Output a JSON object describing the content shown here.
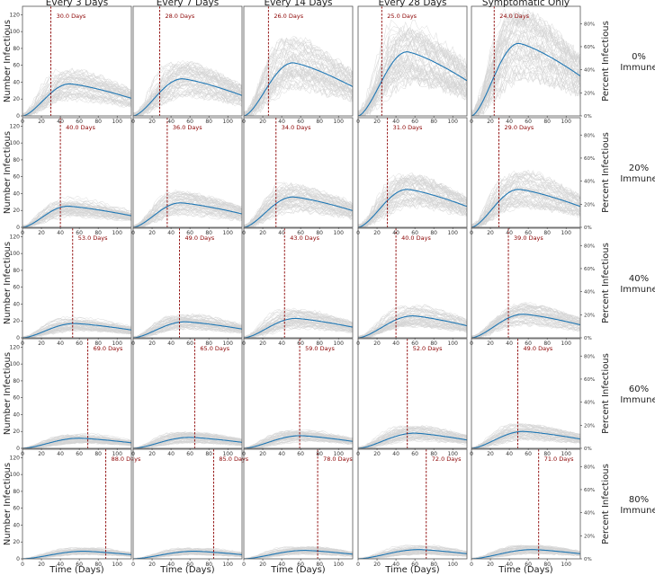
{
  "chart_data": {
    "type": "line",
    "column_titles": [
      "Every 3 Days",
      "Every 7 Days",
      "Every 14 Days",
      "Every 28 Days",
      "Symptomatic Only"
    ],
    "row_labels": [
      [
        "0%",
        "Immune"
      ],
      [
        "20%",
        "Immune"
      ],
      [
        "40%",
        "Immune"
      ],
      [
        "60%",
        "Immune"
      ],
      [
        "80%",
        "Immune"
      ]
    ],
    "xlabel": "Time (Days)",
    "ylabel_left": "Number Infectious",
    "ylabel_right": "Percent Infectious",
    "xlim": [
      0,
      115
    ],
    "ylim": [
      0,
      130
    ],
    "x_ticks": [
      0,
      20,
      40,
      60,
      80,
      100
    ],
    "y_ticks": [
      0,
      20,
      40,
      60,
      80,
      100,
      120
    ],
    "right_ticks": [
      "0%",
      "20%",
      "40%",
      "60%",
      "80%"
    ],
    "colors": {
      "mean_line": "#1f77b4",
      "sim_lines": "#d3d3d3",
      "day_marker": "#8b0000",
      "frame": "#555555"
    },
    "panels": [
      [
        {
          "marker_day": 30,
          "marker_label": "30.0 Days",
          "peak_day": 50,
          "peak_value": 38
        },
        {
          "marker_day": 28,
          "marker_label": "28.0 Days",
          "peak_day": 52,
          "peak_value": 44
        },
        {
          "marker_day": 26,
          "marker_label": "26.0 Days",
          "peak_day": 52,
          "peak_value": 63
        },
        {
          "marker_day": 25,
          "marker_label": "25.0 Days",
          "peak_day": 52,
          "peak_value": 76
        },
        {
          "marker_day": 24,
          "marker_label": "24.0 Days",
          "peak_day": 50,
          "peak_value": 86
        }
      ],
      [
        {
          "marker_day": 40,
          "marker_label": "40.0 Days",
          "peak_day": 48,
          "peak_value": 25
        },
        {
          "marker_day": 36,
          "marker_label": "36.0 Days",
          "peak_day": 50,
          "peak_value": 29
        },
        {
          "marker_day": 34,
          "marker_label": "34.0 Days",
          "peak_day": 52,
          "peak_value": 36
        },
        {
          "marker_day": 31,
          "marker_label": "31.0 Days",
          "peak_day": 52,
          "peak_value": 45
        },
        {
          "marker_day": 29,
          "marker_label": "29.0 Days",
          "peak_day": 50,
          "peak_value": 45
        }
      ],
      [
        {
          "marker_day": 53,
          "marker_label": "53.0 Days",
          "peak_day": 55,
          "peak_value": 17
        },
        {
          "marker_day": 49,
          "marker_label": "49.0 Days",
          "peak_day": 55,
          "peak_value": 19
        },
        {
          "marker_day": 43,
          "marker_label": "43.0 Days",
          "peak_day": 55,
          "peak_value": 23
        },
        {
          "marker_day": 40,
          "marker_label": "40.0 Days",
          "peak_day": 58,
          "peak_value": 26
        },
        {
          "marker_day": 39,
          "marker_label": "39.0 Days",
          "peak_day": 55,
          "peak_value": 28
        }
      ],
      [
        {
          "marker_day": 69,
          "marker_label": "69.0 Days",
          "peak_day": 60,
          "peak_value": 12
        },
        {
          "marker_day": 65,
          "marker_label": "65.0 Days",
          "peak_day": 60,
          "peak_value": 13
        },
        {
          "marker_day": 59,
          "marker_label": "59.0 Days",
          "peak_day": 60,
          "peak_value": 15
        },
        {
          "marker_day": 52,
          "marker_label": "52.0 Days",
          "peak_day": 60,
          "peak_value": 18
        },
        {
          "marker_day": 49,
          "marker_label": "49.0 Days",
          "peak_day": 55,
          "peak_value": 20
        }
      ],
      [
        {
          "marker_day": 88,
          "marker_label": "88.0 Days",
          "peak_day": 65,
          "peak_value": 9
        },
        {
          "marker_day": 85,
          "marker_label": "85.0 Days",
          "peak_day": 65,
          "peak_value": 9
        },
        {
          "marker_day": 78,
          "marker_label": "78.0 Days",
          "peak_day": 65,
          "peak_value": 10
        },
        {
          "marker_day": 72,
          "marker_label": "72.0 Days",
          "peak_day": 65,
          "peak_value": 11
        },
        {
          "marker_day": 71,
          "marker_label": "71.0 Days",
          "peak_day": 65,
          "peak_value": 11
        }
      ]
    ]
  }
}
